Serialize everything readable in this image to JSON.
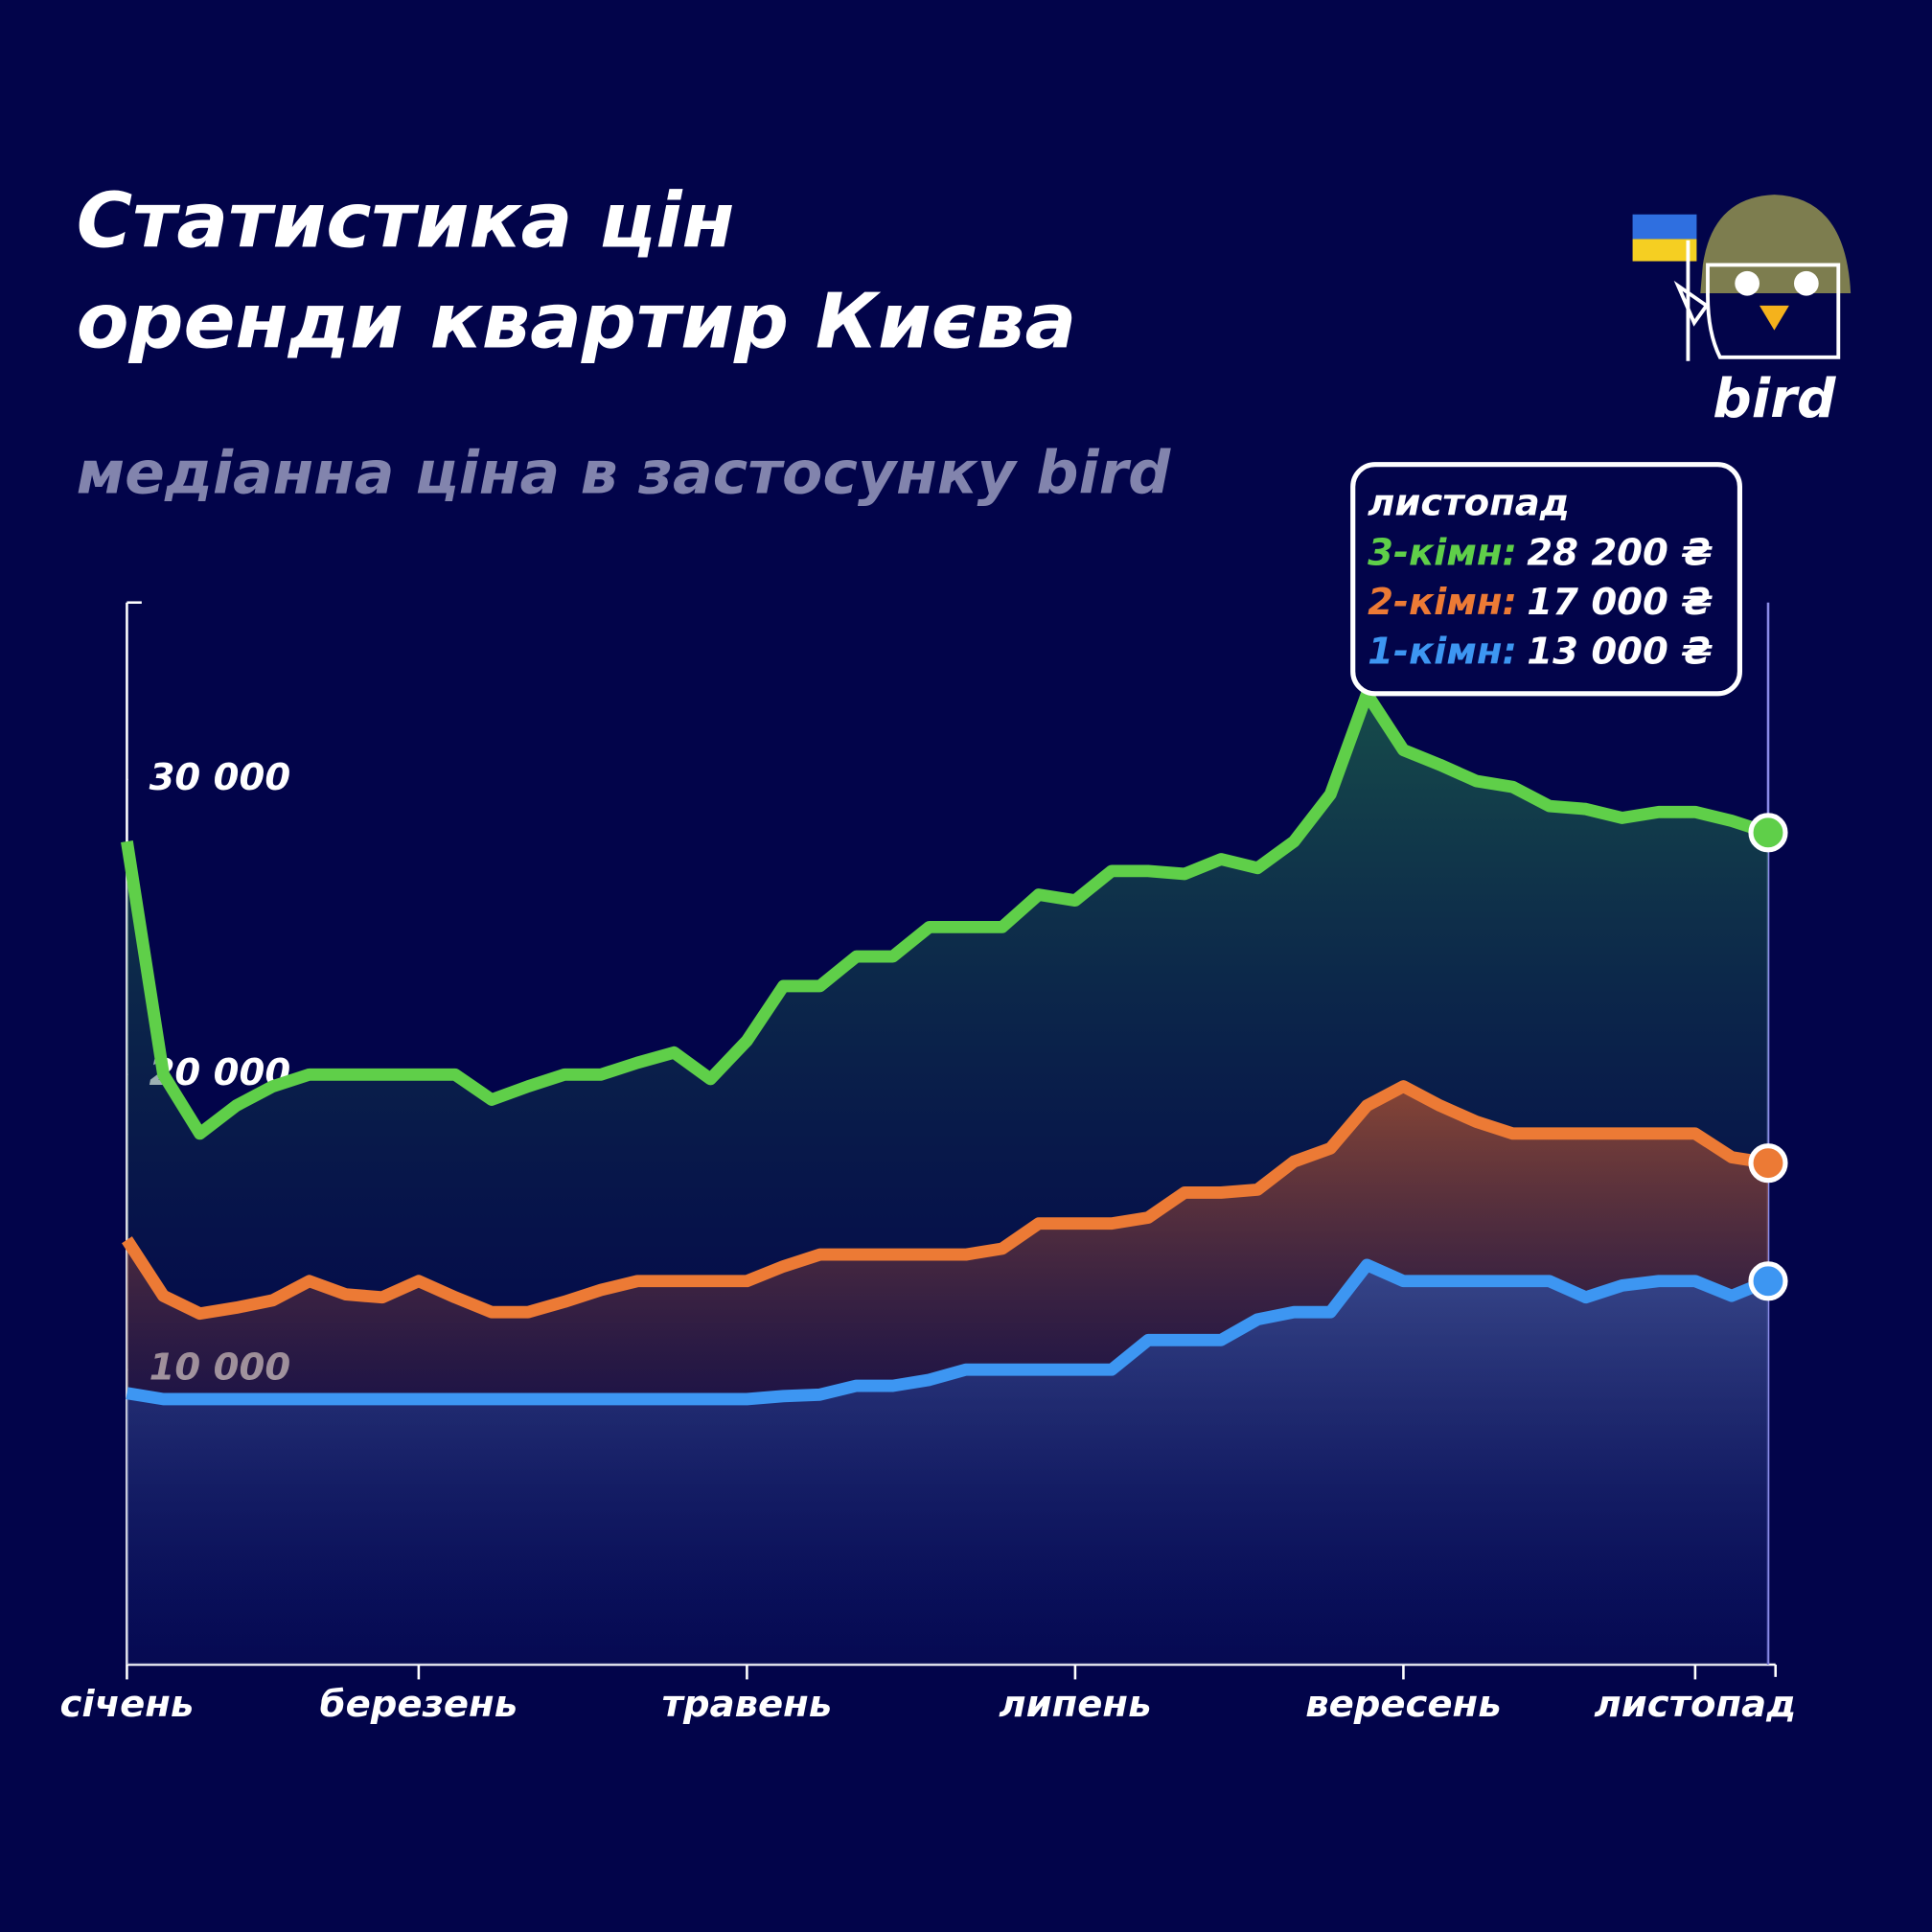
{
  "chart_data": {
    "type": "line",
    "title": [
      "Статистика цін",
      "оренди квартир Києва"
    ],
    "subtitle": "медіанна ціна в застосунку bird",
    "logo": "bird",
    "categories": [
      "січень",
      null,
      null,
      null,
      null,
      null,
      null,
      null,
      "березень",
      null,
      null,
      null,
      null,
      null,
      null,
      null,
      null,
      "травень",
      null,
      null,
      null,
      null,
      null,
      null,
      null,
      null,
      "липень",
      null,
      null,
      null,
      null,
      null,
      null,
      null,
      null,
      "вересень",
      null,
      null,
      null,
      null,
      null,
      null,
      null,
      "листопад",
      null,
      null
    ],
    "series": [
      {
        "name": "3-кімн:",
        "color": "#5fcf49",
        "values": [
          27900,
          20000,
          18000,
          18950,
          19600,
          20000,
          20000,
          20000,
          20000,
          20000,
          19150,
          19600,
          20000,
          20000,
          20400,
          20750,
          19850,
          21150,
          23000,
          23000,
          24000,
          24000,
          25000,
          25000,
          25000,
          26100,
          25900,
          26900,
          26900,
          26800,
          27300,
          27000,
          27900,
          29500,
          32900,
          31000,
          30500,
          29950,
          29750,
          29100,
          29000,
          28700,
          28900,
          28900,
          28600,
          28200
        ]
      },
      {
        "name": "2-кімн:",
        "color": "#ec7a35",
        "values": [
          14400,
          12500,
          11900,
          12100,
          12350,
          13000,
          12550,
          12450,
          13000,
          12450,
          11950,
          11950,
          12300,
          12700,
          13000,
          13000,
          13000,
          13000,
          13500,
          13900,
          13900,
          13900,
          13900,
          13900,
          14100,
          14950,
          14950,
          14950,
          15150,
          16000,
          16000,
          16100,
          17050,
          17500,
          18950,
          19600,
          18950,
          18400,
          18000,
          18000,
          18000,
          18000,
          18000,
          18000,
          17200,
          17000
        ]
      },
      {
        "name": "1-кімн:",
        "color": "#3d96f2",
        "values": [
          9200,
          9000,
          9000,
          9000,
          9000,
          9000,
          9000,
          9000,
          9000,
          9000,
          9000,
          9000,
          9000,
          9000,
          9000,
          9000,
          9000,
          9000,
          9100,
          9150,
          9450,
          9450,
          9650,
          10000,
          10000,
          10000,
          10000,
          10000,
          11000,
          11000,
          11000,
          11700,
          11950,
          11950,
          13550,
          13000,
          13000,
          13000,
          13000,
          13000,
          12450,
          12850,
          13000,
          13000,
          12500,
          13000
        ]
      }
    ],
    "ylim": [
      0,
      36000
    ],
    "yticks": [
      {
        "value": 10000,
        "label": "10 000"
      },
      {
        "value": 20000,
        "label": "20 000"
      },
      {
        "value": 30000,
        "label": "30 000"
      }
    ],
    "tooltip": {
      "title": "листопад",
      "labels": [
        "28 200 ₴",
        "17 000 ₴",
        "13 000 ₴"
      ]
    }
  }
}
